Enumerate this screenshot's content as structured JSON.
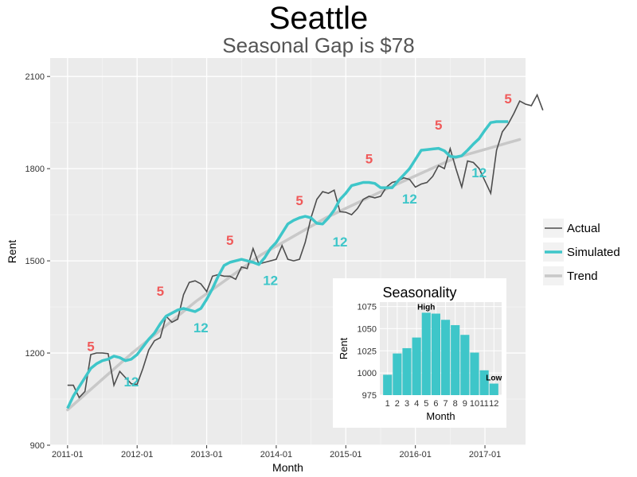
{
  "title": "Seattle",
  "subtitle": "Seasonal Gap is $78",
  "chart_data": [
    {
      "type": "line",
      "xlabel": "Month",
      "ylabel": "Rent",
      "xlim": [
        "2010-10",
        "2017-08"
      ],
      "ylim": [
        900,
        2160
      ],
      "x_ticks": [
        "2011-01",
        "2012-01",
        "2013-01",
        "2014-01",
        "2015-01",
        "2016-01",
        "2017-01"
      ],
      "y_ticks": [
        900,
        1200,
        1500,
        1800,
        2100
      ],
      "grid": true,
      "legend": {
        "position": "right",
        "entries": [
          "Actual",
          "Simulated",
          "Trend"
        ]
      },
      "colors": {
        "actual": "#4d4d4d",
        "simulated": "#3ec6c9",
        "trend": "#c8c8c8",
        "peak_marker": "#f05a5a",
        "trough_marker": "#3ec6c9"
      },
      "start_month": "2011-01",
      "series": [
        {
          "name": "Actual",
          "values": [
            1095,
            1095,
            1055,
            1075,
            1195,
            1200,
            1200,
            1198,
            1095,
            1140,
            1120,
            1100,
            1098,
            1150,
            1210,
            1240,
            1250,
            1320,
            1300,
            1310,
            1390,
            1430,
            1435,
            1425,
            1400,
            1450,
            1455,
            1450,
            1450,
            1440,
            1480,
            1475,
            1540,
            1490,
            1495,
            1500,
            1505,
            1550,
            1505,
            1500,
            1505,
            1560,
            1640,
            1700,
            1725,
            1720,
            1730,
            1660,
            1658,
            1650,
            1670,
            1700,
            1710,
            1705,
            1710,
            1740,
            1755,
            1760,
            1770,
            1765,
            1740,
            1750,
            1755,
            1775,
            1810,
            1800,
            1865,
            1800,
            1740,
            1825,
            1820,
            1800,
            1760,
            1720,
            1860,
            1920,
            1945,
            1980,
            2020,
            2010,
            2005,
            2040,
            1990
          ]
        },
        {
          "name": "Simulated",
          "values": [
            1020,
            1060,
            1090,
            1120,
            1150,
            1165,
            1175,
            1180,
            1190,
            1185,
            1175,
            1180,
            1195,
            1220,
            1245,
            1265,
            1295,
            1320,
            1330,
            1340,
            1345,
            1340,
            1335,
            1345,
            1375,
            1410,
            1450,
            1485,
            1495,
            1500,
            1505,
            1500,
            1495,
            1488,
            1510,
            1540,
            1560,
            1590,
            1620,
            1632,
            1640,
            1645,
            1640,
            1622,
            1620,
            1640,
            1665,
            1700,
            1720,
            1745,
            1750,
            1755,
            1755,
            1752,
            1738,
            1738,
            1738,
            1760,
            1780,
            1800,
            1830,
            1860,
            1862,
            1864,
            1866,
            1858,
            1840,
            1838,
            1842,
            1860,
            1880,
            1898,
            1925,
            1950,
            1953,
            1953,
            1953
          ]
        },
        {
          "name": "Trend",
          "values": [
            1015,
            1200,
            1370,
            1520,
            1640,
            1740,
            1835,
            1895
          ]
        }
      ],
      "annotations": [
        {
          "label": "5",
          "type": "peak",
          "x": "2011-05",
          "y": 1225
        },
        {
          "label": "12",
          "type": "trough",
          "x": "2011-12",
          "y": 1110
        },
        {
          "label": "5",
          "type": "peak",
          "x": "2012-05",
          "y": 1405
        },
        {
          "label": "12",
          "type": "trough",
          "x": "2012-12",
          "y": 1285
        },
        {
          "label": "5",
          "type": "peak",
          "x": "2013-05",
          "y": 1570
        },
        {
          "label": "12",
          "type": "trough",
          "x": "2013-12",
          "y": 1440
        },
        {
          "label": "5",
          "type": "peak",
          "x": "2014-05",
          "y": 1700
        },
        {
          "label": "12",
          "type": "trough",
          "x": "2014-12",
          "y": 1565
        },
        {
          "label": "5",
          "type": "peak",
          "x": "2015-05",
          "y": 1835
        },
        {
          "label": "12",
          "type": "trough",
          "x": "2015-12",
          "y": 1705
        },
        {
          "label": "5",
          "type": "peak",
          "x": "2016-05",
          "y": 1945
        },
        {
          "label": "12",
          "type": "trough",
          "x": "2016-12",
          "y": 1790
        },
        {
          "label": "5",
          "type": "peak",
          "x": "2017-05",
          "y": 2030
        }
      ]
    },
    {
      "type": "bar",
      "title": "Seasonality",
      "xlabel": "Month",
      "ylabel": "Rent",
      "categories": [
        "1",
        "2",
        "3",
        "4",
        "5",
        "6",
        "7",
        "8",
        "9",
        "10",
        "11",
        "12"
      ],
      "values": [
        998,
        1022,
        1028,
        1040,
        1068,
        1067,
        1060,
        1054,
        1043,
        1023,
        1003,
        988
      ],
      "ylim": [
        975,
        1080
      ],
      "y_ticks": [
        975,
        1000,
        1025,
        1050,
        1075
      ],
      "annotations": [
        {
          "label": "High",
          "category": "5"
        },
        {
          "label": "Low",
          "category": "12"
        }
      ],
      "color": "#3ec6c9"
    }
  ]
}
